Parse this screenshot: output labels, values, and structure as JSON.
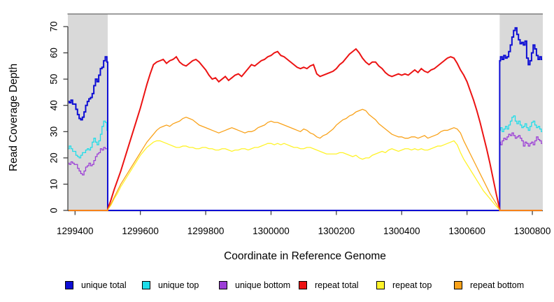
{
  "chart_data": {
    "type": "line",
    "title": "",
    "xlabel": "Coordinate in Reference Genome",
    "ylabel": "Read Coverage Depth",
    "xlim": [
      1299378,
      1300832
    ],
    "ylim": [
      0,
      74.8
    ],
    "x_ticks": [
      1299400,
      1299600,
      1299800,
      1300000,
      1300200,
      1300400,
      1300600,
      1300800
    ],
    "y_ticks": [
      0,
      10,
      20,
      30,
      40,
      50,
      60,
      70
    ],
    "grid": false,
    "legend_position": "bottom",
    "plot_background": "#ffffff",
    "shaded_region_color": "#d9d9d9",
    "shaded_regions": [
      {
        "x0": 1299378,
        "x1": 1299500
      },
      {
        "x0": 1300700,
        "x1": 1300832
      }
    ],
    "series": [
      {
        "name": "unique total",
        "color": "#0d0dd4",
        "lwd": 2,
        "z": 3,
        "segments": [
          {
            "x0": 1299380,
            "dx": 5,
            "values": [
              41.5,
              41,
              42,
              40.5,
              40.5,
              38.5,
              36.5,
              35,
              34.5,
              35.5,
              37.5,
              40,
              41.5,
              42.5,
              43,
              44.5,
              47.5,
              50,
              49,
              51.5,
              54,
              54.5,
              57,
              58.5,
              56.5
            ]
          },
          {
            "x0": 1299500,
            "dx": 1200,
            "values": [
              0,
              0
            ]
          },
          {
            "x0": 1300700,
            "dx": 5,
            "values": [
              57,
              58.5,
              57.5,
              59,
              58,
              58.5,
              60.5,
              63,
              66,
              68.5,
              69.5,
              67,
              65,
              63.5,
              64,
              63,
              64.5,
              58,
              55.5,
              57,
              60,
              63,
              61.5,
              59,
              57.5,
              58.5,
              57.5
            ]
          }
        ]
      },
      {
        "name": "unique top",
        "color": "#1fdde9",
        "lwd": 1.3,
        "z": 1,
        "segments": [
          {
            "x0": 1299380,
            "dx": 5,
            "values": [
              23.5,
              24.5,
              23.5,
              22.5,
              22.5,
              21,
              20.5,
              20,
              21,
              22,
              22,
              23,
              23.5,
              23,
              24,
              26,
              27.5,
              26,
              25,
              26.5,
              29,
              32,
              34,
              33.5,
              30.5
            ]
          },
          {
            "x0": 1299500,
            "dx": 1200,
            "values": [
              0,
              0
            ]
          },
          {
            "x0": 1300700,
            "dx": 5,
            "values": [
              30.5,
              31.5,
              30,
              31,
              32,
              31,
              32.5,
              34,
              35.5,
              36,
              34,
              33,
              34,
              32.5,
              31.5,
              32,
              33,
              31.5,
              30.5,
              32,
              33.5,
              34,
              32.5,
              31.5,
              32,
              31,
              30
            ]
          }
        ]
      },
      {
        "name": "unique bottom",
        "color": "#9c3ed6",
        "lwd": 1.3,
        "z": 2,
        "segments": [
          {
            "x0": 1299380,
            "dx": 5,
            "values": [
              18,
              17.5,
              18.5,
              18,
              17.5,
              17.5,
              16,
              15,
              14,
              13.5,
              15,
              16.5,
              17,
              18,
              17,
              17.5,
              19,
              20.5,
              21.5,
              22,
              23.5,
              23,
              24,
              23.5,
              23.5
            ]
          },
          {
            "x0": 1299500,
            "dx": 1200,
            "values": [
              0,
              0
            ]
          },
          {
            "x0": 1300700,
            "dx": 5,
            "values": [
              26,
              25,
              26.5,
              27.5,
              27,
              28,
              29,
              28.5,
              29.5,
              28.5,
              27.5,
              28,
              28.5,
              27.5,
              26.5,
              24.5,
              26,
              25.5,
              24.5,
              25.5,
              26,
              25,
              26.5,
              28,
              27,
              26.5,
              25.5
            ]
          }
        ]
      },
      {
        "name": "repeat total",
        "color": "#ec1313",
        "lwd": 2,
        "z": 4,
        "segments": [
          {
            "x0": 1299380,
            "dx": 120,
            "values": [
              0,
              0
            ]
          },
          {
            "x0": 1299500,
            "dx": 10,
            "values": [
              0.5,
              4,
              8,
              11.5,
              15,
              19,
              23,
              27,
              31,
              35,
              39,
              43.5,
              48,
              52,
              55.5,
              56.5,
              57,
              57.5,
              56,
              57,
              57.5,
              58.5,
              56.5,
              55.5,
              55,
              56,
              57,
              57.5,
              56.5,
              55,
              53.5,
              51.5,
              50,
              50.5,
              49,
              50,
              51,
              49.5,
              50.5,
              51.5,
              52,
              51,
              52.5,
              54,
              55.5,
              55,
              56,
              57,
              57.5,
              58.5,
              59,
              60,
              60.5,
              59,
              58.5,
              57.5,
              56.5,
              55.5,
              54.5,
              54,
              54.5,
              54,
              55,
              55.5,
              52,
              51,
              51.5,
              52,
              52.5,
              53,
              54,
              55.5,
              56.5,
              58,
              59.5,
              60.5,
              61.5,
              60,
              58,
              56.5,
              55.5,
              56.5,
              56.5,
              55,
              54,
              52.5,
              51.5,
              51,
              51.5,
              52,
              51.5,
              52,
              51.5,
              52.5,
              53.5,
              52.5,
              54,
              53,
              52.5,
              53.5,
              54,
              55,
              56,
              57,
              58,
              58.5,
              58,
              56,
              53.5,
              51.5,
              49,
              45.5,
              42,
              38,
              33.5,
              28.5,
              23.5,
              18,
              12,
              6,
              0.5
            ]
          },
          {
            "x0": 1300700,
            "dx": 130,
            "values": [
              0,
              0
            ]
          }
        ]
      },
      {
        "name": "repeat top",
        "color": "#fff32a",
        "lwd": 1.3,
        "z": 5,
        "segments": [
          {
            "x0": 1299380,
            "dx": 120,
            "values": [
              0,
              0
            ]
          },
          {
            "x0": 1299500,
            "dx": 10,
            "values": [
              0.3,
              2,
              4.5,
              6.5,
              9,
              11,
              13,
              15,
              17,
              19,
              21,
              22.5,
              24,
              25,
              26,
              26.5,
              26.5,
              26,
              25.5,
              25,
              24.5,
              24,
              24,
              24.5,
              24.5,
              24,
              24,
              23.5,
              23.5,
              24,
              24,
              23.5,
              23.5,
              23,
              23,
              23.5,
              23.5,
              23,
              22.5,
              23,
              23,
              23.5,
              23.5,
              23,
              23.5,
              24,
              24,
              24.5,
              25,
              25.5,
              25.5,
              25,
              25.5,
              25,
              25.5,
              25,
              24.5,
              24,
              24,
              23.5,
              23.5,
              24,
              24,
              23.5,
              23,
              22.5,
              22,
              21.5,
              21.5,
              21.5,
              21.5,
              22,
              22,
              21.5,
              21,
              20.5,
              21,
              20,
              19.5,
              20,
              20,
              21,
              21.5,
              22,
              22.5,
              22,
              23,
              23.5,
              23,
              22.5,
              23,
              23.5,
              23.5,
              23,
              23.5,
              23,
              23.5,
              23,
              23,
              23.5,
              24,
              24.5,
              24.5,
              25,
              25.5,
              26,
              26.5,
              25,
              22,
              19.5,
              17.5,
              15.5,
              13.5,
              11.5,
              9.5,
              7.5,
              6,
              4.5,
              3,
              1.5,
              0.3
            ]
          },
          {
            "x0": 1300700,
            "dx": 130,
            "values": [
              0,
              0
            ]
          }
        ]
      },
      {
        "name": "repeat bottom",
        "color": "#f9a21a",
        "lwd": 1.3,
        "z": 6,
        "segments": [
          {
            "x0": 1299380,
            "dx": 120,
            "values": [
              0,
              0
            ]
          },
          {
            "x0": 1299500,
            "dx": 10,
            "values": [
              0.3,
              2.5,
              5,
              7.5,
              10,
              12,
              14,
              16,
              18,
              20,
              22,
              24,
              26,
              27.5,
              29,
              30.5,
              31.5,
              32,
              32.5,
              32,
              33,
              33.5,
              34,
              35,
              35.5,
              35,
              34.5,
              33.5,
              32.5,
              32,
              31.5,
              31,
              30.5,
              30,
              29.5,
              30,
              30.5,
              31,
              31.5,
              31,
              30.5,
              30,
              29.5,
              30,
              30,
              30.5,
              31.5,
              32,
              32.5,
              33.5,
              34,
              33.5,
              33.5,
              33,
              32.5,
              32,
              31.5,
              31,
              30.5,
              30,
              31,
              30.5,
              29.5,
              29,
              28,
              27.5,
              28.5,
              29,
              30,
              31,
              32.5,
              33.5,
              34.5,
              35,
              36,
              36.5,
              37.5,
              38,
              38.5,
              38,
              36.5,
              35.5,
              34.5,
              33,
              32,
              31,
              30,
              29,
              28.5,
              28,
              28,
              27.5,
              27.5,
              28,
              28,
              27.5,
              28,
              28.5,
              27.5,
              28,
              28.5,
              29,
              30,
              30.5,
              30.5,
              31,
              31.5,
              31,
              29.5,
              26.5,
              24,
              21.5,
              19,
              16.5,
              14,
              11.5,
              9,
              6.5,
              4.5,
              2.5,
              0.3
            ]
          },
          {
            "x0": 1300700,
            "dx": 130,
            "values": [
              0,
              0
            ]
          }
        ]
      }
    ]
  }
}
